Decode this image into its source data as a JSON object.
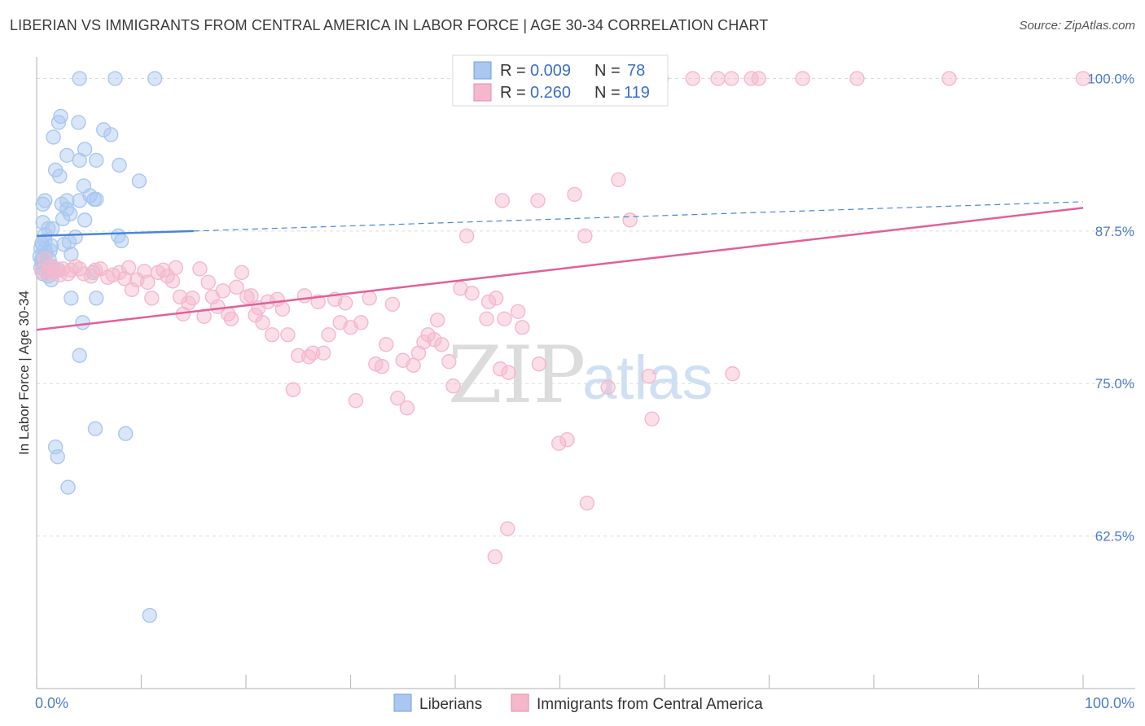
{
  "header": {
    "title": "LIBERIAN VS IMMIGRANTS FROM CENTRAL AMERICA IN LABOR FORCE | AGE 30-34 CORRELATION CHART",
    "source": "Source: ZipAtlas.com"
  },
  "watermark": {
    "zip": "ZIP",
    "atlas": "atlas"
  },
  "legend_top": {
    "rows": [
      {
        "r_label": "R = ",
        "r_value": "0.009",
        "n_label": "N = ",
        "n_value": "78",
        "color": "#a9c7f0"
      },
      {
        "r_label": "R = ",
        "r_value": "0.260",
        "n_label": "N = ",
        "n_value": "119",
        "color": "#f5b8cb"
      }
    ]
  },
  "legend_bottom": [
    {
      "label": "Liberians",
      "color": "#a9c7f0"
    },
    {
      "label": "Immigrants from Central America",
      "color": "#f5b8cb"
    }
  ],
  "chart_data": {
    "type": "scatter",
    "title": "LIBERIAN VS IMMIGRANTS FROM CENTRAL AMERICA IN LABOR FORCE | AGE 30-34 CORRELATION CHART",
    "ylabel": "In Labor Force | Age 30-34",
    "xlabel": "",
    "xlim": [
      0,
      100
    ],
    "ylim": [
      50,
      101.5
    ],
    "x_tick_labels": [
      "0.0%",
      "100.0%"
    ],
    "y_ticks": [
      62.5,
      75.0,
      87.5,
      100.0
    ],
    "y_tick_labels": [
      "62.5%",
      "75.0%",
      "87.5%",
      "100.0%"
    ],
    "grid": "horizontal dashed",
    "legend_position": "top-center",
    "series": [
      {
        "name": "Liberians",
        "color": "#4a86d8",
        "fill": "#a9c7f0",
        "R": 0.009,
        "N": 78,
        "trend": {
          "x0": 0,
          "y0": 87.1,
          "x1": 15,
          "y1": 87.5,
          "x_ext": 100,
          "y_ext": 89.9
        },
        "points": [
          [
            4.1,
            100
          ],
          [
            7.5,
            100
          ],
          [
            11.3,
            100
          ],
          [
            2.1,
            96.4
          ],
          [
            2.3,
            96.9
          ],
          [
            4.0,
            96.4
          ],
          [
            1.6,
            95.2
          ],
          [
            6.4,
            95.8
          ],
          [
            7.1,
            95.4
          ],
          [
            4.6,
            94.2
          ],
          [
            2.9,
            93.7
          ],
          [
            4.1,
            93.3
          ],
          [
            5.7,
            93.3
          ],
          [
            7.9,
            92.9
          ],
          [
            1.8,
            92.5
          ],
          [
            2.2,
            92.0
          ],
          [
            9.8,
            91.6
          ],
          [
            4.5,
            91.2
          ],
          [
            0.8,
            90.0
          ],
          [
            2.9,
            90.0
          ],
          [
            4.1,
            90.0
          ],
          [
            5.1,
            90.4
          ],
          [
            5.5,
            90.1
          ],
          [
            5.7,
            90.1
          ],
          [
            0.6,
            89.7
          ],
          [
            2.4,
            89.7
          ],
          [
            2.9,
            89.3
          ],
          [
            3.2,
            88.9
          ],
          [
            2.5,
            88.5
          ],
          [
            4.6,
            88.4
          ],
          [
            0.6,
            88.2
          ],
          [
            1.1,
            87.7
          ],
          [
            1.5,
            87.7
          ],
          [
            0.8,
            87.2
          ],
          [
            3.7,
            87.0
          ],
          [
            7.8,
            87.1
          ],
          [
            8.1,
            86.7
          ],
          [
            0.5,
            86.5
          ],
          [
            0.8,
            86.7
          ],
          [
            1.4,
            86.3
          ],
          [
            2.6,
            86.4
          ],
          [
            3.1,
            86.6
          ],
          [
            0.4,
            86.1
          ],
          [
            0.8,
            86.0
          ],
          [
            1.3,
            85.9
          ],
          [
            0.9,
            85.7
          ],
          [
            3.3,
            85.6
          ],
          [
            0.3,
            85.4
          ],
          [
            0.5,
            85.2
          ],
          [
            1.2,
            85.2
          ],
          [
            0.5,
            84.9
          ],
          [
            0.8,
            84.7
          ],
          [
            1.0,
            84.8
          ],
          [
            1.5,
            84.6
          ],
          [
            0.4,
            84.5
          ],
          [
            0.9,
            84.2
          ],
          [
            2.1,
            84.3
          ],
          [
            0.6,
            84.0
          ],
          [
            1.1,
            83.8
          ],
          [
            1.4,
            83.5
          ],
          [
            5.4,
            84.1
          ],
          [
            3.3,
            82.0
          ],
          [
            5.7,
            82.0
          ],
          [
            4.4,
            80.0
          ],
          [
            4.1,
            77.3
          ],
          [
            5.6,
            71.3
          ],
          [
            8.5,
            70.9
          ],
          [
            1.8,
            69.8
          ],
          [
            2.0,
            69.0
          ],
          [
            3.0,
            66.5
          ],
          [
            10.8,
            56.0
          ]
        ]
      },
      {
        "name": "Immigrants from Central America",
        "color": "#e0609a",
        "fill": "#f5b8cb",
        "R": 0.26,
        "N": 119,
        "trend": {
          "x0": 0,
          "y0": 79.4,
          "x1": 100,
          "y1": 89.4
        },
        "points": [
          [
            53.3,
            100
          ],
          [
            59.7,
            100
          ],
          [
            62.7,
            100
          ],
          [
            65.1,
            100
          ],
          [
            66.4,
            100
          ],
          [
            68.3,
            100
          ],
          [
            69.0,
            100
          ],
          [
            73.2,
            100
          ],
          [
            78.4,
            100
          ],
          [
            87.2,
            100
          ],
          [
            100,
            100
          ],
          [
            55.6,
            91.7
          ],
          [
            51.4,
            90.5
          ],
          [
            47.9,
            90.0
          ],
          [
            44.5,
            90.0
          ],
          [
            56.7,
            88.4
          ],
          [
            41.1,
            87.1
          ],
          [
            52.4,
            87.1
          ],
          [
            0.5,
            84.2
          ],
          [
            0.8,
            85.2
          ],
          [
            1.0,
            84.0
          ],
          [
            1.3,
            84.6
          ],
          [
            1.6,
            84.1
          ],
          [
            1.9,
            84.4
          ],
          [
            2.2,
            83.9
          ],
          [
            2.5,
            84.4
          ],
          [
            3.0,
            84.0
          ],
          [
            3.3,
            84.3
          ],
          [
            3.7,
            84.6
          ],
          [
            4.1,
            84.4
          ],
          [
            4.5,
            84.0
          ],
          [
            5.2,
            83.8
          ],
          [
            5.6,
            84.3
          ],
          [
            6.1,
            84.4
          ],
          [
            6.8,
            83.7
          ],
          [
            7.3,
            83.9
          ],
          [
            7.9,
            84.1
          ],
          [
            8.4,
            83.6
          ],
          [
            8.8,
            84.5
          ],
          [
            9.1,
            82.7
          ],
          [
            9.6,
            83.5
          ],
          [
            10.3,
            84.2
          ],
          [
            10.6,
            83.3
          ],
          [
            11.0,
            82.0
          ],
          [
            11.6,
            84.1
          ],
          [
            12.1,
            84.3
          ],
          [
            12.5,
            83.8
          ],
          [
            13.0,
            83.4
          ],
          [
            13.3,
            84.5
          ],
          [
            13.7,
            82.1
          ],
          [
            14.0,
            80.7
          ],
          [
            14.5,
            81.6
          ],
          [
            14.9,
            82.0
          ],
          [
            15.6,
            84.4
          ],
          [
            16.0,
            80.5
          ],
          [
            16.4,
            83.3
          ],
          [
            16.8,
            82.1
          ],
          [
            17.3,
            81.3
          ],
          [
            17.8,
            82.6
          ],
          [
            18.3,
            80.7
          ],
          [
            18.6,
            80.3
          ],
          [
            19.1,
            82.9
          ],
          [
            19.6,
            84.1
          ],
          [
            20.1,
            82.1
          ],
          [
            20.5,
            82.2
          ],
          [
            20.9,
            80.6
          ],
          [
            21.2,
            81.2
          ],
          [
            21.6,
            80.0
          ],
          [
            22.1,
            81.7
          ],
          [
            22.5,
            79.0
          ],
          [
            23.0,
            81.9
          ],
          [
            23.5,
            81.1
          ],
          [
            24.0,
            79.0
          ],
          [
            24.5,
            74.5
          ],
          [
            25.0,
            77.3
          ],
          [
            25.6,
            82.2
          ],
          [
            26.0,
            77.2
          ],
          [
            26.4,
            77.5
          ],
          [
            26.9,
            81.7
          ],
          [
            27.4,
            77.5
          ],
          [
            27.9,
            79.0
          ],
          [
            28.5,
            81.9
          ],
          [
            29.0,
            80.0
          ],
          [
            29.5,
            81.6
          ],
          [
            30.0,
            79.6
          ],
          [
            30.5,
            73.6
          ],
          [
            31.0,
            80.0
          ],
          [
            31.8,
            82.0
          ],
          [
            32.4,
            76.6
          ],
          [
            33.0,
            76.4
          ],
          [
            33.4,
            78.2
          ],
          [
            34.0,
            81.5
          ],
          [
            34.5,
            73.8
          ],
          [
            35.0,
            76.9
          ],
          [
            35.4,
            73.0
          ],
          [
            36.0,
            76.5
          ],
          [
            36.5,
            77.5
          ],
          [
            37.0,
            78.4
          ],
          [
            37.4,
            79.0
          ],
          [
            38.0,
            78.6
          ],
          [
            38.3,
            80.2
          ],
          [
            38.7,
            78.2
          ],
          [
            39.4,
            76.8
          ],
          [
            39.8,
            74.8
          ],
          [
            40.5,
            82.8
          ],
          [
            41.6,
            82.4
          ],
          [
            43.0,
            80.3
          ],
          [
            43.2,
            81.7
          ],
          [
            43.9,
            82.0
          ],
          [
            44.7,
            80.3
          ],
          [
            44.3,
            76.2
          ],
          [
            45.1,
            75.9
          ],
          [
            46.0,
            80.9
          ],
          [
            46.4,
            79.6
          ],
          [
            48.0,
            76.6
          ],
          [
            54.6,
            74.7
          ],
          [
            58.5,
            75.6
          ],
          [
            58.8,
            72.1
          ],
          [
            66.5,
            75.8
          ],
          [
            49.9,
            70.1
          ],
          [
            50.7,
            70.4
          ],
          [
            52.6,
            65.2
          ],
          [
            45.0,
            63.1
          ],
          [
            43.8,
            60.8
          ]
        ]
      }
    ]
  }
}
